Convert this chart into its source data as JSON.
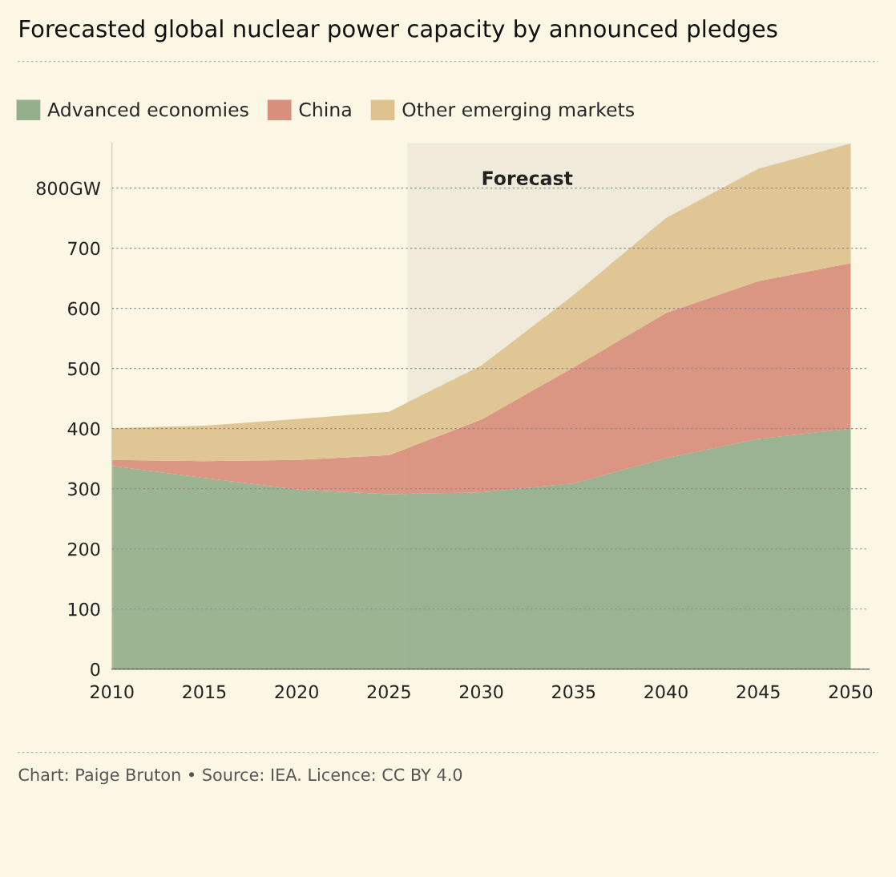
{
  "chart_data": {
    "type": "area",
    "stacked": true,
    "title": "Forecasted global nuclear power capacity by announced pledges",
    "x": [
      2010,
      2015,
      2020,
      2025,
      2030,
      2035,
      2040,
      2045,
      2050
    ],
    "series": [
      {
        "name": "Advanced economies",
        "color": "#94ae8c",
        "values": [
          338,
          318,
          299,
          291,
          294,
          309,
          351,
          383,
          400
        ]
      },
      {
        "name": "China",
        "color": "#d88f7c",
        "values": [
          10,
          28,
          49,
          65,
          121,
          193,
          241,
          262,
          275
        ]
      },
      {
        "name": "Other emerging markets",
        "color": "#dfc28f",
        "values": [
          53,
          59,
          68,
          72,
          90,
          120,
          158,
          187,
          199
        ]
      }
    ],
    "xlim": [
      2010,
      2051
    ],
    "xticks": [
      2010,
      2015,
      2020,
      2025,
      2030,
      2035,
      2040,
      2045,
      2050
    ],
    "ylim": [
      0,
      875
    ],
    "yticks": [
      0,
      100,
      200,
      300,
      400,
      500,
      600,
      700,
      {
        "value": 800,
        "label": "800GW"
      }
    ],
    "bands": [
      {
        "axis": "x",
        "from": 2026,
        "to": 2050,
        "label": "Forecast",
        "color": "#efead9"
      }
    ],
    "grid": "y",
    "legend": "top left",
    "annotations": [
      "Chart: Paige Bruton • Source: IEA. Licence: CC BY 4.0"
    ]
  }
}
